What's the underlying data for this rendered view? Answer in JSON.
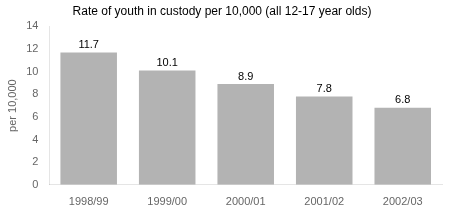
{
  "chart_data": {
    "type": "bar",
    "title": "Rate of youth in custody per 10,000 (all 12-17 year olds)",
    "categories": [
      "1998/99",
      "1999/00",
      "2000/01",
      "2001/02",
      "2002/03"
    ],
    "values": [
      11.7,
      10.1,
      8.9,
      7.8,
      6.8
    ],
    "color": "#b3b3b3",
    "ylabel": "per 10,000",
    "ylim": [
      0,
      14
    ],
    "yticks": [
      0,
      2,
      4,
      6,
      8,
      10,
      12,
      14
    ],
    "grid": false,
    "data_labels": true
  }
}
